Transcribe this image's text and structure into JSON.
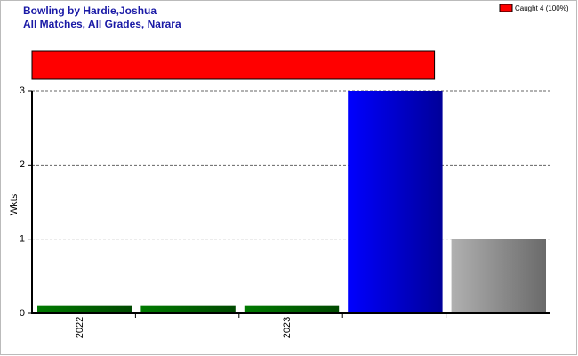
{
  "chart_data": {
    "type": "bar",
    "title": "Bowling by Hardie,Joshua",
    "subtitle": "All Matches, All Grades, Narara",
    "y_label": "Wkts",
    "categories": [
      "2022",
      null,
      "2023",
      null,
      null
    ],
    "values": [
      0.1,
      0.1,
      0.1,
      3,
      1
    ],
    "colors": [
      "#007a00",
      "#007a00",
      "#007a00",
      "#0000ff",
      "#b0b0b0"
    ],
    "ylim": [
      0,
      3
    ],
    "yticks": [
      0,
      1,
      2,
      3
    ],
    "grid": true,
    "dismissals": {
      "name": "Caught 4 (100%)",
      "values": [
        4
      ],
      "color": "#ff0000"
    }
  }
}
